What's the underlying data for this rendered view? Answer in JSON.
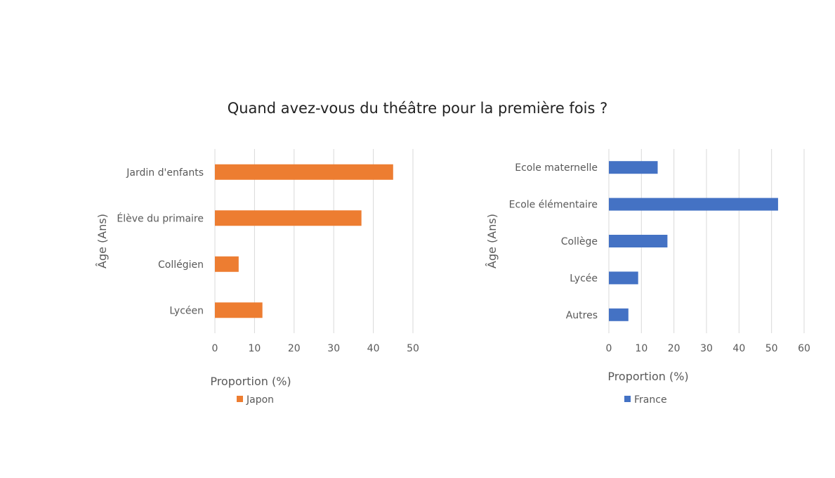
{
  "title": "Quand avez-vous du théâtre pour la première fois ?",
  "chart_data": [
    {
      "type": "bar",
      "orientation": "horizontal",
      "categories": [
        "Jardin d'enfants",
        "Élève du primaire",
        "Collégien",
        "Lycéen"
      ],
      "series": [
        {
          "name": "Japon",
          "values": [
            45,
            37,
            6,
            12
          ]
        }
      ],
      "xlabel": "Proportion (%)",
      "ylabel": "Âge (Ans)",
      "xlim": [
        0,
        50
      ],
      "xticks": [
        0,
        10,
        20,
        30,
        40,
        50
      ],
      "grid": "vertical",
      "legend": "bottom",
      "color": "#ED7D31"
    },
    {
      "type": "bar",
      "orientation": "horizontal",
      "categories": [
        "Ecole maternelle",
        "Ecole élémentaire",
        "Collège",
        "Lycée",
        "Autres"
      ],
      "series": [
        {
          "name": "France",
          "values": [
            15,
            52,
            18,
            9,
            6
          ]
        }
      ],
      "xlabel": "Proportion (%)",
      "ylabel": "Âge (Ans)",
      "xlim": [
        0,
        60
      ],
      "xticks": [
        0,
        10,
        20,
        30,
        40,
        50,
        60
      ],
      "grid": "vertical",
      "legend": "bottom",
      "color": "#4472C4"
    }
  ]
}
